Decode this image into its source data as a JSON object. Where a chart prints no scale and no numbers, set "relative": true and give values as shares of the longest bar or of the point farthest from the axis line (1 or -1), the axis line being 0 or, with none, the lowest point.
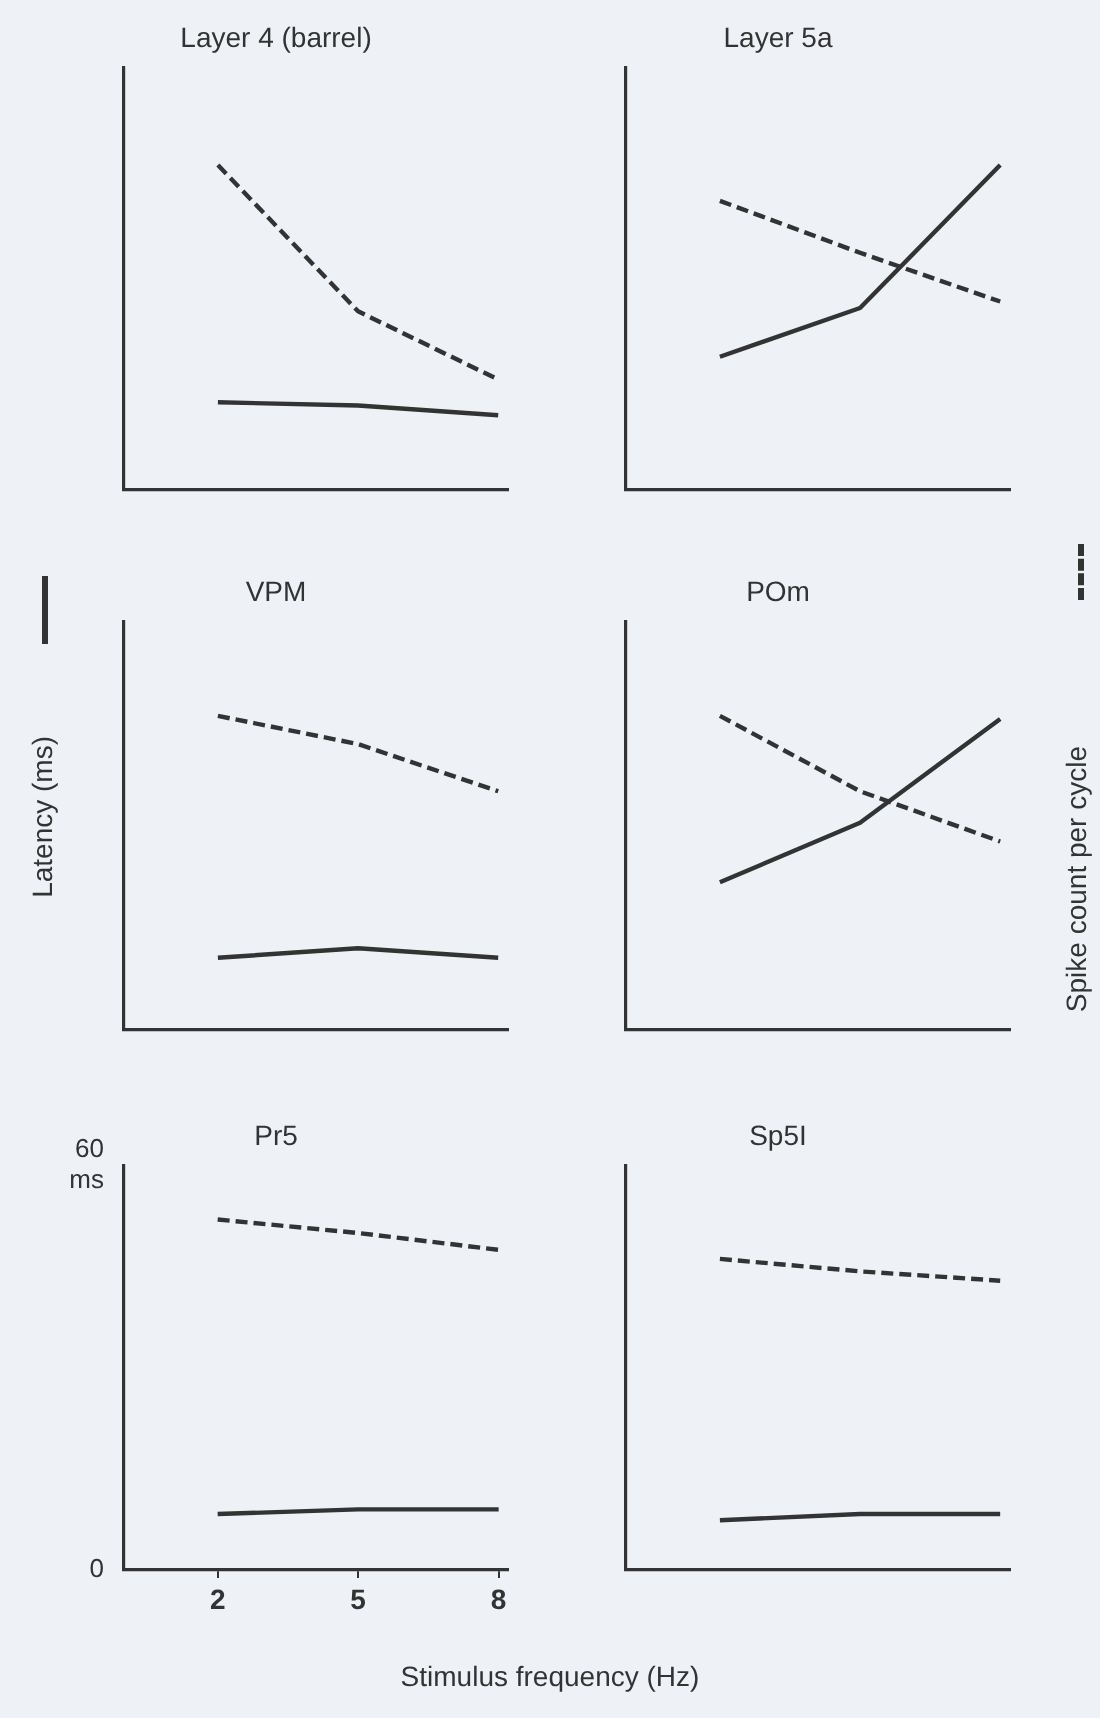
{
  "chart_data": [
    {
      "type": "line",
      "title": "Layer 4 (barrel)",
      "categories": [
        null,
        null,
        null
      ],
      "relative": true,
      "grid": false,
      "series": [
        {
          "color": "#333333",
          "line_style": "solid",
          "values": [
            0.27,
            0.26,
            0.23
          ]
        },
        {
          "color": "#333333",
          "line_style": "dashed",
          "values": [
            1,
            0.55,
            0.34
          ]
        }
      ]
    },
    {
      "type": "line",
      "title": "Layer 5a",
      "categories": [
        null,
        null,
        null
      ],
      "relative": true,
      "grid": false,
      "series": [
        {
          "color": "#333333",
          "line_style": "solid",
          "values": [
            0.41,
            0.56,
            1
          ]
        },
        {
          "color": "#333333",
          "line_style": "dashed",
          "values": [
            0.89,
            0.73,
            0.58
          ]
        }
      ]
    },
    {
      "type": "line",
      "title": "VPM",
      "ylabel": "Latency (ms)",
      "categories": [
        null,
        null,
        null
      ],
      "relative": true,
      "grid": false,
      "series": [
        {
          "color": "#333333",
          "line_style": "solid",
          "values": [
            0.23,
            0.26,
            0.23
          ]
        },
        {
          "color": "#333333",
          "line_style": "dashed",
          "values": [
            1,
            0.91,
            0.76
          ]
        }
      ]
    },
    {
      "type": "line",
      "title": "POm",
      "y2label": "Spike count per cycle",
      "categories": [
        null,
        null,
        null
      ],
      "relative": true,
      "grid": false,
      "series": [
        {
          "color": "#333333",
          "line_style": "solid",
          "values": [
            0.47,
            0.66,
            0.99
          ]
        },
        {
          "color": "#333333",
          "line_style": "dashed",
          "values": [
            1,
            0.76,
            0.6
          ]
        }
      ]
    },
    {
      "type": "line",
      "title": "Pr5",
      "xlabel": "Stimulus frequency (Hz)",
      "x": [
        2,
        5,
        8
      ],
      "xlim": [
        0,
        8.2
      ],
      "xticks": [
        2,
        5,
        8
      ],
      "ylim": [
        0,
        60
      ],
      "yticks": [
        0,
        {
          "value": 60,
          "label": "60\nms"
        }
      ],
      "grid": false,
      "series": [
        {
          "color": "#333333",
          "line_style": "solid",
          "values": [
            8.3,
            9,
            9
          ]
        },
        {
          "color": "#333333",
          "line_style": "dashed",
          "values": [
            52,
            50,
            47.5
          ]
        }
      ]
    },
    {
      "type": "line",
      "title": "Sp5I",
      "categories": [
        null,
        null,
        null
      ],
      "relative": true,
      "grid": false,
      "series": [
        {
          "color": "#333333",
          "line_style": "solid",
          "values": [
            0.16,
            0.18,
            0.18
          ]
        },
        {
          "color": "#333333",
          "line_style": "dashed",
          "values": [
            1,
            0.96,
            0.93
          ]
        }
      ]
    }
  ]
}
